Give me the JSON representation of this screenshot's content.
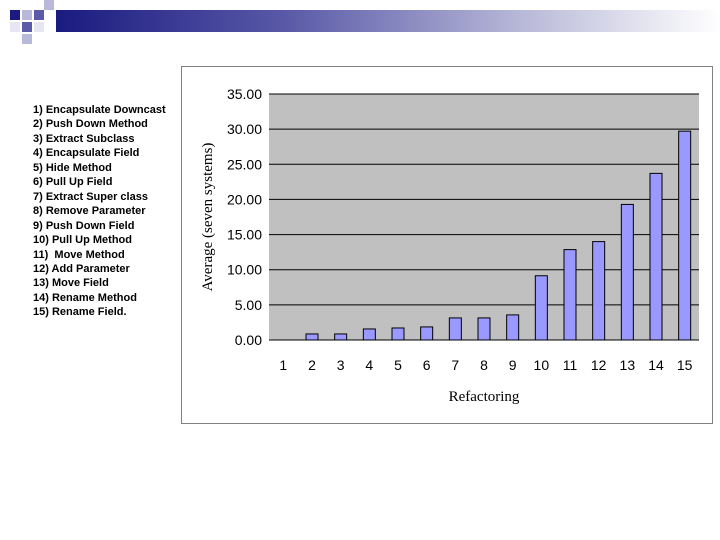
{
  "legend_items": [
    "1) Encapsulate Downcast",
    "2) Push Down Method",
    "3) Extract Subclass",
    "4) Encapsulate Field",
    "5) Hide Method",
    "6) Pull Up Field",
    "7) Extract Super class",
    "8) Remove Parameter",
    "9) Push Down Field",
    "10) Pull Up Method",
    "11)  Move Method",
    "12) Add Parameter",
    "13) Move Field",
    "14) Rename Method",
    "15) Rename Field."
  ],
  "chart_data": {
    "type": "bar",
    "categories": [
      "1",
      "2",
      "3",
      "4",
      "5",
      "6",
      "7",
      "8",
      "9",
      "10",
      "11",
      "12",
      "13",
      "14",
      "15"
    ],
    "values": [
      0.0,
      0.86,
      0.86,
      1.57,
      1.71,
      1.86,
      3.14,
      3.14,
      3.57,
      9.14,
      12.86,
      14.0,
      19.29,
      23.71,
      29.71
    ],
    "xlabel": "Refactoring",
    "ylabel": "Average (seven systems)",
    "ylim": [
      0,
      35
    ],
    "yticks": [
      "0.00",
      "5.00",
      "10.00",
      "15.00",
      "20.00",
      "25.00",
      "30.00",
      "35.00"
    ],
    "grid": true,
    "colors": {
      "bar_fill": "#9999ff",
      "bar_stroke": "#000000",
      "plot_bg": "#c0c0c0",
      "gridline": "#000000"
    }
  },
  "decor": {
    "header_colors": [
      "#1a1a80",
      "#5a5aa8",
      "#b8b8d8",
      "#e6e6f2"
    ]
  }
}
